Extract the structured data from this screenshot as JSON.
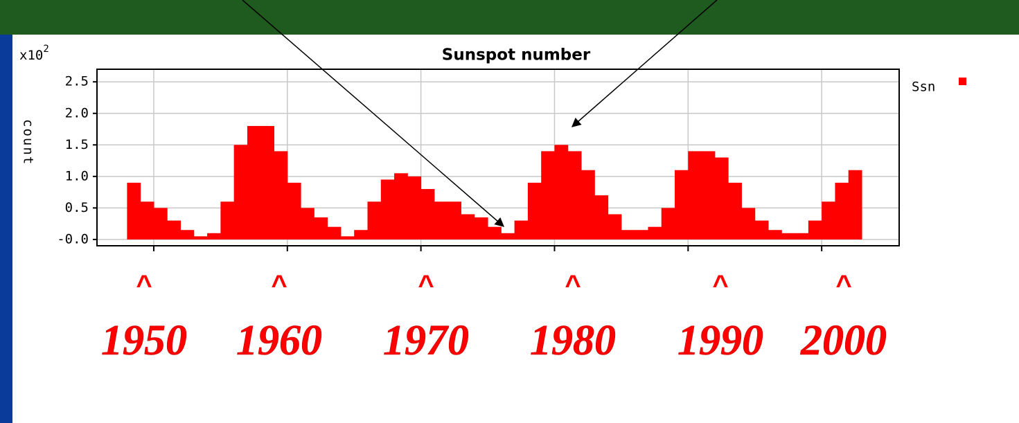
{
  "chart_data": {
    "type": "bar",
    "title": "Sunspot number",
    "y_axis_label": "count",
    "y_multiplier": {
      "base": "x10",
      "exponent": "2"
    },
    "series": [
      {
        "name": "Ssn",
        "color": "#ff0000",
        "x": [
          1948.5,
          1949.5,
          1950.5,
          1951.5,
          1952.5,
          1953.5,
          1954.5,
          1955.5,
          1956.5,
          1957.5,
          1958.5,
          1959.5,
          1960.5,
          1961.5,
          1962.5,
          1963.5,
          1964.5,
          1965.5,
          1966.5,
          1967.5,
          1968.5,
          1969.5,
          1970.5,
          1971.5,
          1972.5,
          1973.5,
          1974.5,
          1975.5,
          1976.5,
          1977.5,
          1978.5,
          1979.5,
          1980.5,
          1981.5,
          1982.5,
          1983.5,
          1984.5,
          1985.5,
          1986.5,
          1987.5,
          1988.5,
          1989.5,
          1990.5,
          1991.5,
          1992.5,
          1993.5,
          1994.5,
          1995.5,
          1996.5,
          1997.5,
          1998.5,
          1999.5,
          2000.5,
          2001.5,
          2002.5
        ],
        "values": [
          0.9,
          0.6,
          0.5,
          0.3,
          0.15,
          0.05,
          0.1,
          0.6,
          1.5,
          1.8,
          1.8,
          1.4,
          0.9,
          0.5,
          0.35,
          0.2,
          0.05,
          0.15,
          0.6,
          0.95,
          1.05,
          1.0,
          0.8,
          0.6,
          0.6,
          0.4,
          0.35,
          0.2,
          0.1,
          0.3,
          0.9,
          1.4,
          1.5,
          1.4,
          1.1,
          0.7,
          0.4,
          0.15,
          0.15,
          0.2,
          0.5,
          1.1,
          1.4,
          1.4,
          1.3,
          0.9,
          0.5,
          0.3,
          0.15,
          0.1,
          0.1,
          0.3,
          0.6,
          0.9,
          1.1
        ]
      }
    ],
    "xlim": [
      1945.75,
      2005.8
    ],
    "xticks": [
      1950,
      1960,
      1970,
      1980,
      1990,
      2000
    ],
    "ylim": [
      -0.1,
      2.7
    ],
    "yticks": [
      2.5,
      {
        "value": 2,
        "label": "2.0"
      },
      {
        "value": 1.5,
        "label": "1.5"
      },
      {
        "value": 1,
        "label": "1.0"
      },
      0.5,
      {
        "value": 0,
        "label": "-0.0"
      }
    ],
    "grid": true,
    "legend": "right",
    "year_markers": [
      {
        "caret": "^",
        "label": "1950"
      },
      {
        "caret": "^",
        "label": "1960"
      },
      {
        "caret": "^",
        "label": "1970"
      },
      {
        "caret": "^",
        "label": "1980"
      },
      {
        "caret": "^",
        "label": "1990"
      },
      {
        "caret": "^",
        "label": "2000"
      }
    ]
  }
}
